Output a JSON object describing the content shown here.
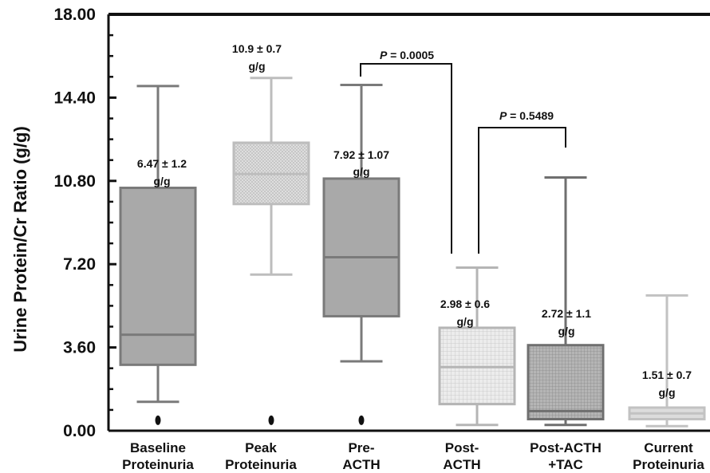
{
  "chart_data": {
    "type": "boxplot",
    "ylabel": "Urine Protein/Cr Ratio (g/g)",
    "ylim": [
      0,
      18
    ],
    "yticks": [
      "0.00",
      "3.60",
      "7.20",
      "10.80",
      "14.40",
      "18.00"
    ],
    "categories": [
      {
        "line1": "Baseline",
        "line2": "Proteinuria"
      },
      {
        "line1": "Peak",
        "line2": "Proteinuria"
      },
      {
        "line1": "Pre-",
        "line2": "ACTH"
      },
      {
        "line1": "Post-",
        "line2": "ACTH"
      },
      {
        "line1": "Post-ACTH",
        "line2": "+TAC"
      },
      {
        "line1": "Current",
        "line2": "Proteinuria"
      }
    ],
    "boxes": [
      {
        "min": 1.25,
        "q1": 2.85,
        "median": 4.15,
        "q3": 10.5,
        "max": 14.9,
        "outlier": 0.35,
        "fill": "#a9a9a9",
        "stroke": "#7a7a7a",
        "pattern": "none"
      },
      {
        "min": 6.75,
        "q1": 9.8,
        "median": 11.1,
        "q3": 12.45,
        "max": 15.25,
        "outlier": 0.35,
        "fill": "#dcdcdc",
        "stroke": "#bdbdbd",
        "pattern": "fine"
      },
      {
        "min": 3.0,
        "q1": 4.95,
        "median": 7.5,
        "q3": 10.9,
        "max": 14.95,
        "outlier": 0.35,
        "fill": "#a9a9a9",
        "stroke": "#7a7a7a",
        "pattern": "none"
      },
      {
        "min": 0.25,
        "q1": 1.15,
        "median": 2.75,
        "q3": 4.45,
        "max": 7.05,
        "outlier": null,
        "fill": "#e6e6e6",
        "stroke": "#b5b5b5",
        "pattern": "grid"
      },
      {
        "min": 0.25,
        "q1": 0.5,
        "median": 0.85,
        "q3": 3.7,
        "max": 10.95,
        "outlier": null,
        "fill": "#a9a9a9",
        "stroke": "#6f6f6f",
        "pattern": "grid-dark"
      },
      {
        "min": 0.2,
        "q1": 0.5,
        "median": 0.75,
        "q3": 1.0,
        "max": 5.85,
        "outlier": null,
        "fill": "#dcdcdc",
        "stroke": "#c2c2c2",
        "pattern": "none"
      }
    ],
    "annotations": [
      {
        "box": 0,
        "line1": "6.47 ± 1.2",
        "line2": "g/g"
      },
      {
        "box": 1,
        "line1": "10.9 ± 0.7",
        "line2": "g/g"
      },
      {
        "box": 2,
        "line1": "7.92 ± 1.07",
        "line2": "g/g"
      },
      {
        "box": 3,
        "line1": "2.98 ± 0.6",
        "line2": "g/g"
      },
      {
        "box": 4,
        "line1": "2.72 ± 1.1",
        "line2": "g/g"
      },
      {
        "box": 5,
        "line1": "1.51 ± 0.7",
        "line2": "g/g"
      }
    ],
    "comparisons": [
      {
        "from": 2,
        "to": 3,
        "text": "P = 0.0005"
      },
      {
        "from": 3,
        "to": 4,
        "text": "P = 0.5489"
      }
    ]
  }
}
